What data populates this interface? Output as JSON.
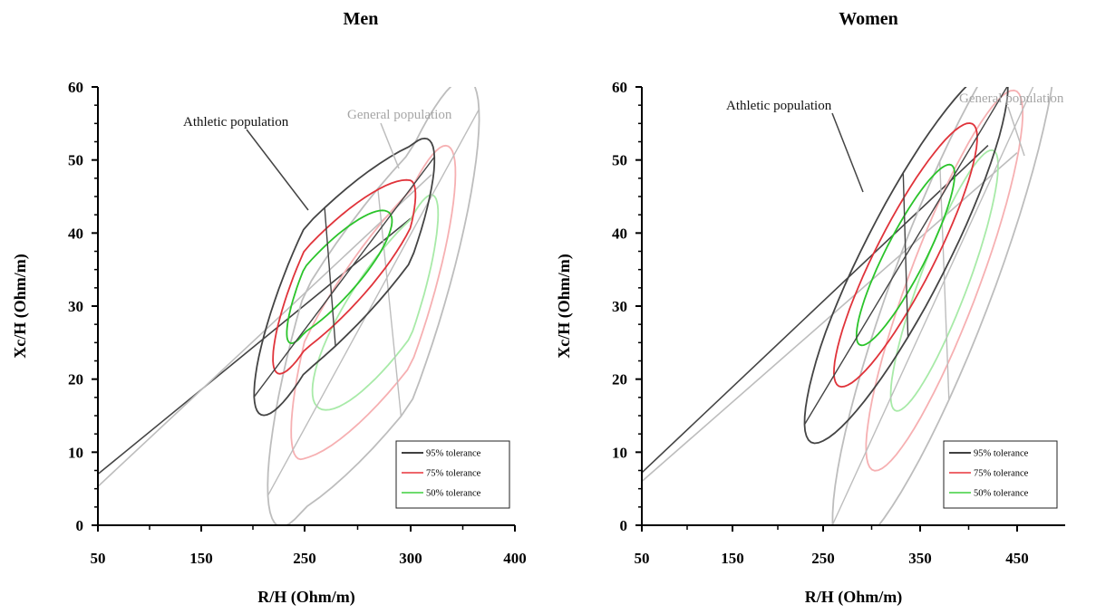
{
  "chart_data": [
    {
      "type": "scatter",
      "title": "Men",
      "xlabel": "R/H (Ohm/m)",
      "ylabel": "Xc/H (Ohm/m)",
      "xticks": [
        50,
        150,
        250,
        300,
        400
      ],
      "yticks": [
        0,
        10,
        20,
        30,
        40,
        50,
        60
      ],
      "ylim": [
        0,
        60
      ],
      "grid": false,
      "legend_position": "bottom-right",
      "legend": [
        {
          "label": "95% tolerance",
          "color": "#000000"
        },
        {
          "label": "75% tolerance",
          "color": "#e8333a"
        },
        {
          "label": "50% tolerance",
          "color": "#3ecf3e"
        }
      ],
      "annotations": [
        "Athletic population",
        "General population"
      ],
      "series": [
        {
          "name": "Athletic population",
          "color": "#333333",
          "center": [
            262,
            34
          ],
          "ellipse_95": {
            "semi_major": 63,
            "semi_minor": 9.8,
            "major_dir": [
              1,
              0.27
            ]
          }
        },
        {
          "name": "General population",
          "color": "#b3b3b3",
          "center": [
            290,
            30.5
          ],
          "ellipse_95": {
            "semi_major": 80,
            "semi_minor": 16.5,
            "major_dir": [
              1,
              0.35
            ]
          }
        }
      ],
      "vector_lines": [
        {
          "series": "Athletic population",
          "from": [
            50,
            7
          ],
          "to": [
            300,
            42
          ]
        },
        {
          "series": "General population",
          "from": [
            50,
            5.3
          ],
          "to": [
            320,
            48
          ]
        }
      ]
    },
    {
      "type": "scatter",
      "title": "Women",
      "xlabel": "R/H (Ohm/m)",
      "ylabel": "Xc/H (Ohm/m)",
      "xticks": [
        50,
        150,
        250,
        350,
        450
      ],
      "yticks": [
        0,
        10,
        20,
        30,
        40,
        50,
        60
      ],
      "ylim": [
        0,
        60
      ],
      "grid": false,
      "legend_position": "bottom-right",
      "legend": [
        {
          "label": "95% tolerance",
          "color": "#000000"
        },
        {
          "label": "75% tolerance",
          "color": "#e8333a"
        },
        {
          "label": "50% tolerance",
          "color": "#3ecf3e"
        }
      ],
      "annotations": [
        "Athletic population",
        "General population"
      ],
      "series": [
        {
          "name": "Athletic population",
          "color": "#333333",
          "center": [
            335,
            37
          ],
          "ellipse_95": {
            "semi_major": 108,
            "semi_minor": 11.5,
            "major_dir": [
              1,
              0.22
            ]
          }
        },
        {
          "name": "General population",
          "color": "#b3b3b3",
          "center": [
            375,
            33.5
          ],
          "ellipse_95": {
            "semi_major": 120,
            "semi_minor": 17,
            "major_dir": [
              1,
              0.29
            ]
          }
        }
      ],
      "vector_lines": [
        {
          "series": "Athletic population",
          "from": [
            50,
            7.2
          ],
          "to": [
            420,
            52
          ]
        },
        {
          "series": "General population",
          "from": [
            50,
            6
          ],
          "to": [
            450,
            51
          ]
        }
      ]
    }
  ]
}
